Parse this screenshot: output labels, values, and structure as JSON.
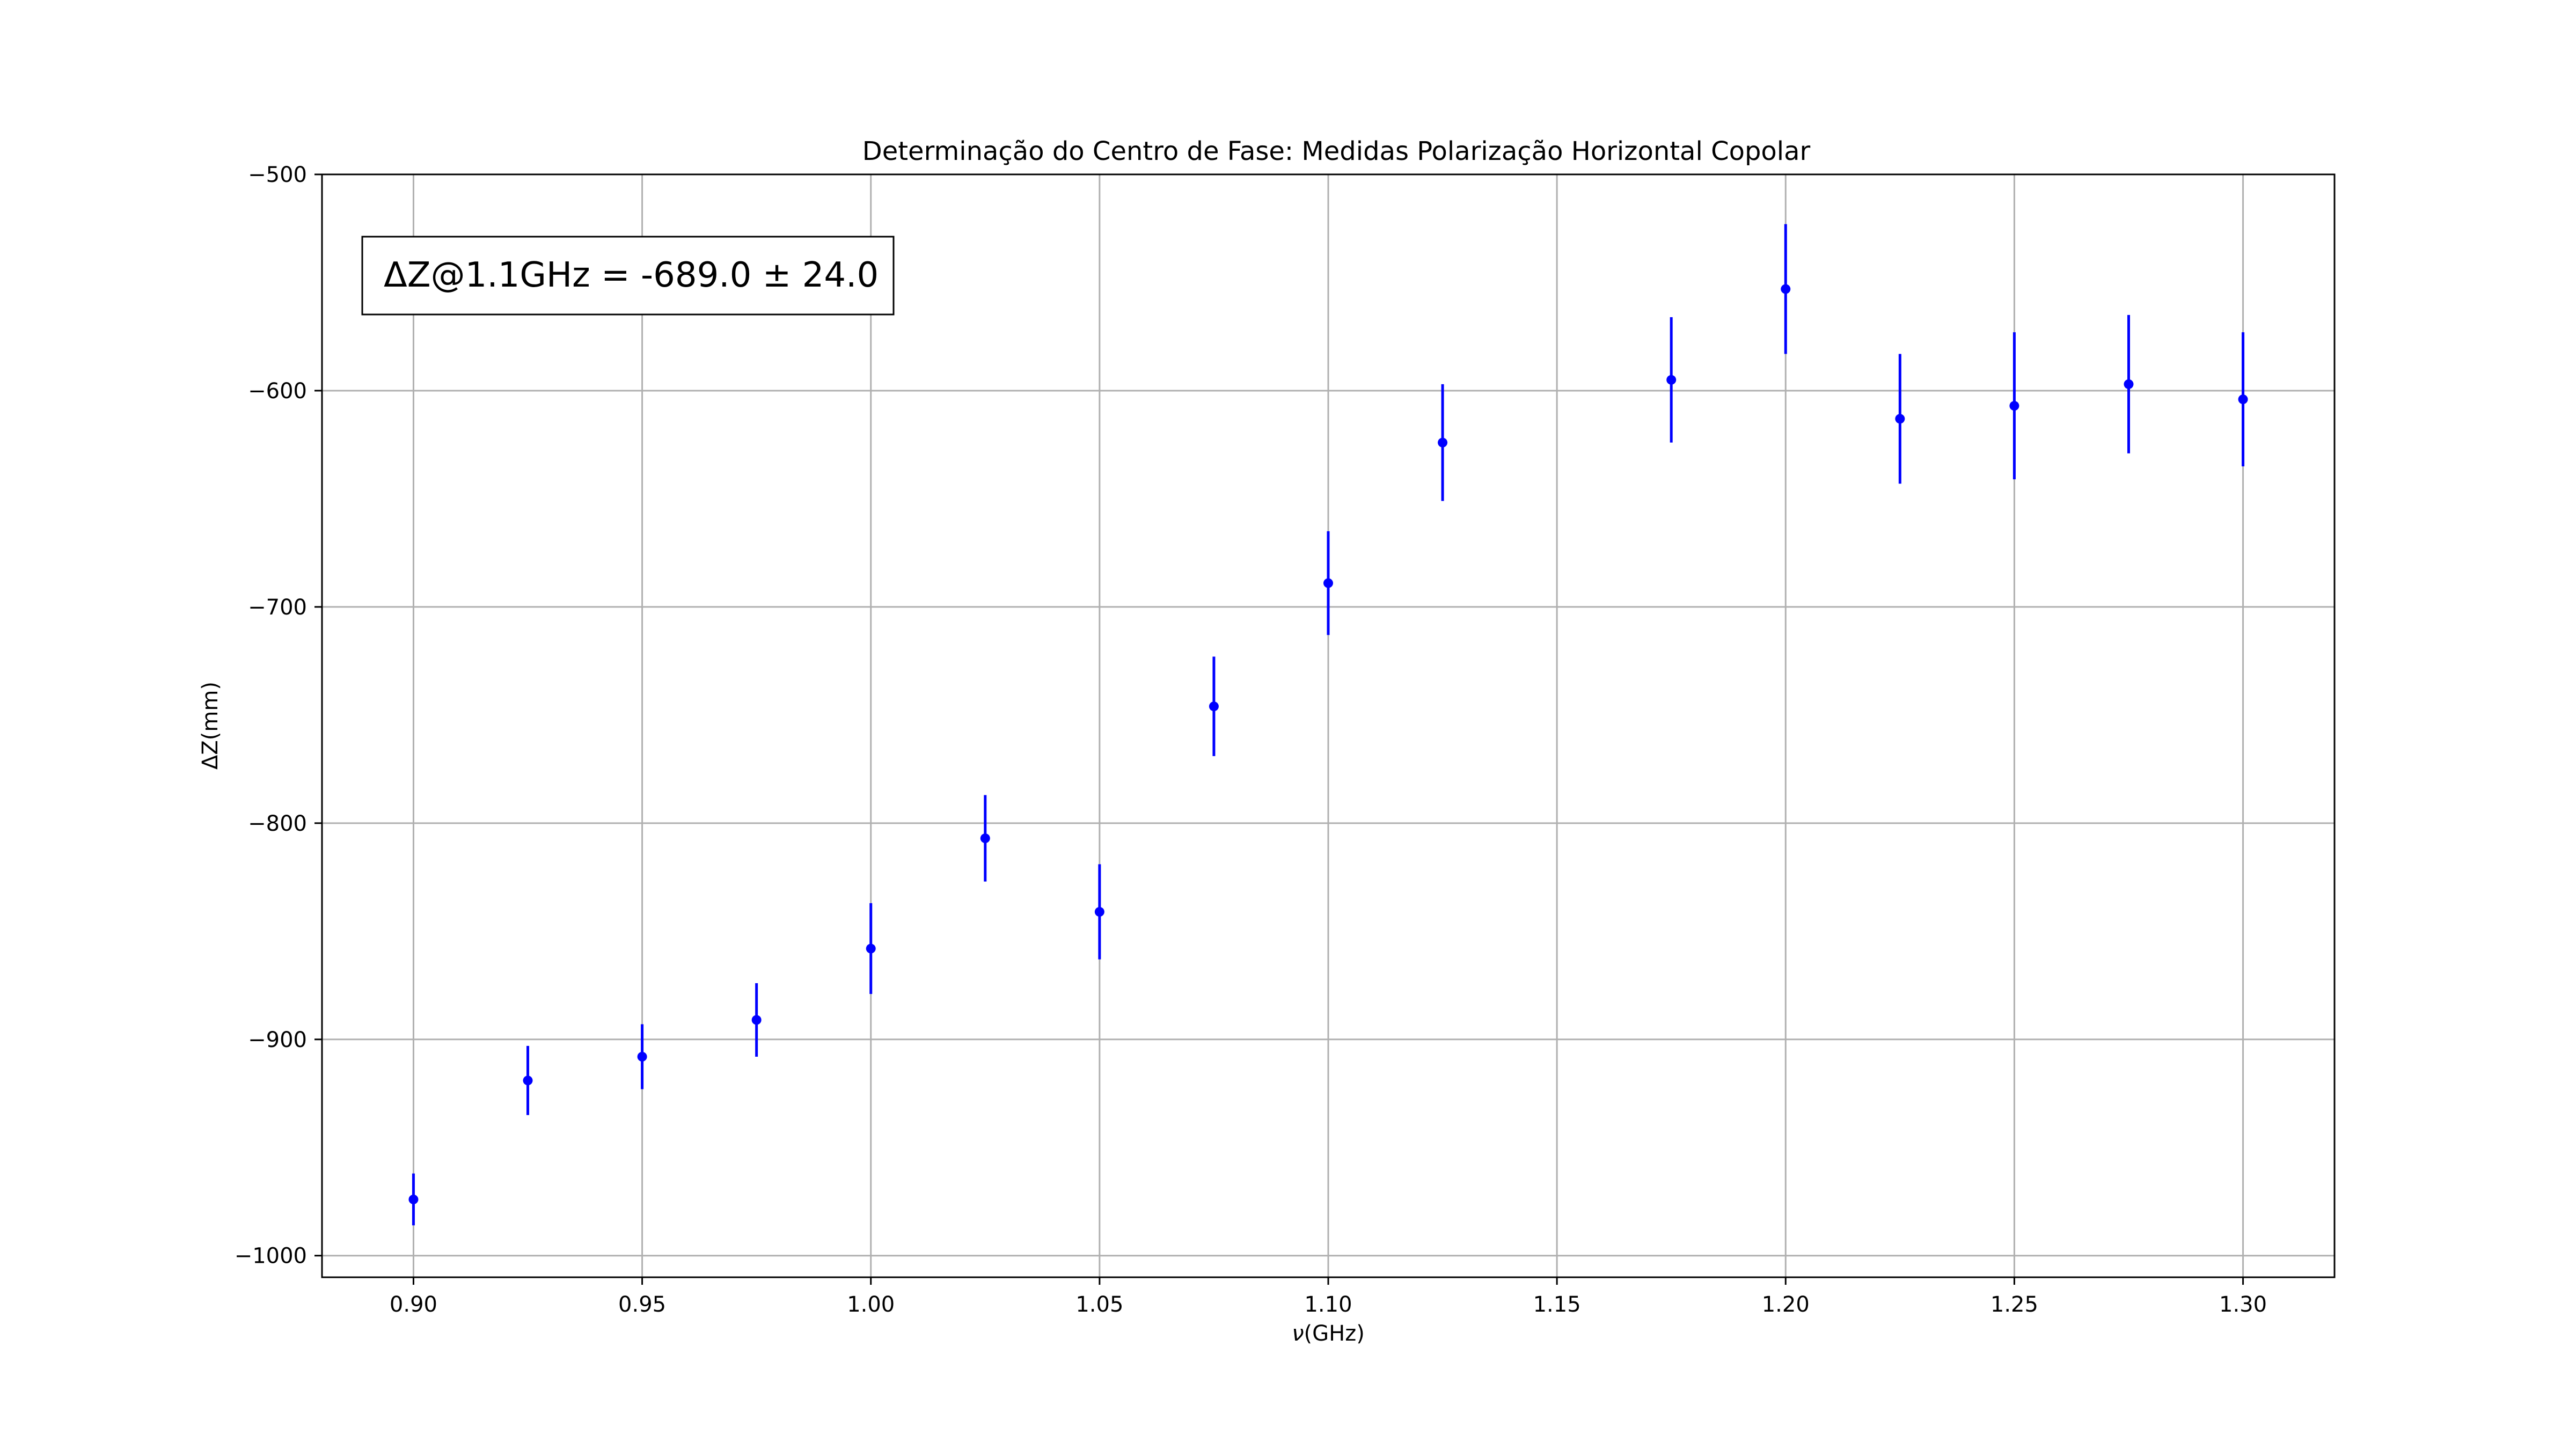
{
  "chart_data": {
    "type": "scatter",
    "title": "Determinação do Centro de Fase: Medidas Polarização Horizontal Copolar",
    "xlabel_prefix": "ν",
    "xlabel_suffix": "(GHz)",
    "ylabel_prefix": "ΔZ",
    "ylabel_suffix": "(mm)",
    "xlim": [
      0.88,
      1.32
    ],
    "ylim": [
      -1010,
      -500
    ],
    "xticks": [
      "0.90",
      "0.95",
      "1.00",
      "1.05",
      "1.10",
      "1.15",
      "1.20",
      "1.25",
      "1.30"
    ],
    "yticks": [
      "−500",
      "−600",
      "−700",
      "−800",
      "−900",
      "−1000"
    ],
    "grid": true,
    "marker_color": "#0000ff",
    "annotation_prefix": "ΔZ",
    "annotation_suffix": "@1.1GHz = -689.0 ± 24.0",
    "points": [
      {
        "x": 0.9,
        "y": -974,
        "err": 12
      },
      {
        "x": 0.925,
        "y": -919,
        "err": 16
      },
      {
        "x": 0.95,
        "y": -908,
        "err": 15
      },
      {
        "x": 0.975,
        "y": -891,
        "err": 17
      },
      {
        "x": 1.0,
        "y": -858,
        "err": 21
      },
      {
        "x": 1.025,
        "y": -807,
        "err": 20
      },
      {
        "x": 1.05,
        "y": -841,
        "err": 22
      },
      {
        "x": 1.075,
        "y": -746,
        "err": 23
      },
      {
        "x": 1.1,
        "y": -689,
        "err": 24
      },
      {
        "x": 1.125,
        "y": -624,
        "err": 27
      },
      {
        "x": 1.175,
        "y": -595,
        "err": 29
      },
      {
        "x": 1.2,
        "y": -553,
        "err": 30
      },
      {
        "x": 1.225,
        "y": -613,
        "err": 30
      },
      {
        "x": 1.25,
        "y": -607,
        "err": 34
      },
      {
        "x": 1.275,
        "y": -597,
        "err": 32
      },
      {
        "x": 1.3,
        "y": -604,
        "err": 31
      }
    ]
  }
}
